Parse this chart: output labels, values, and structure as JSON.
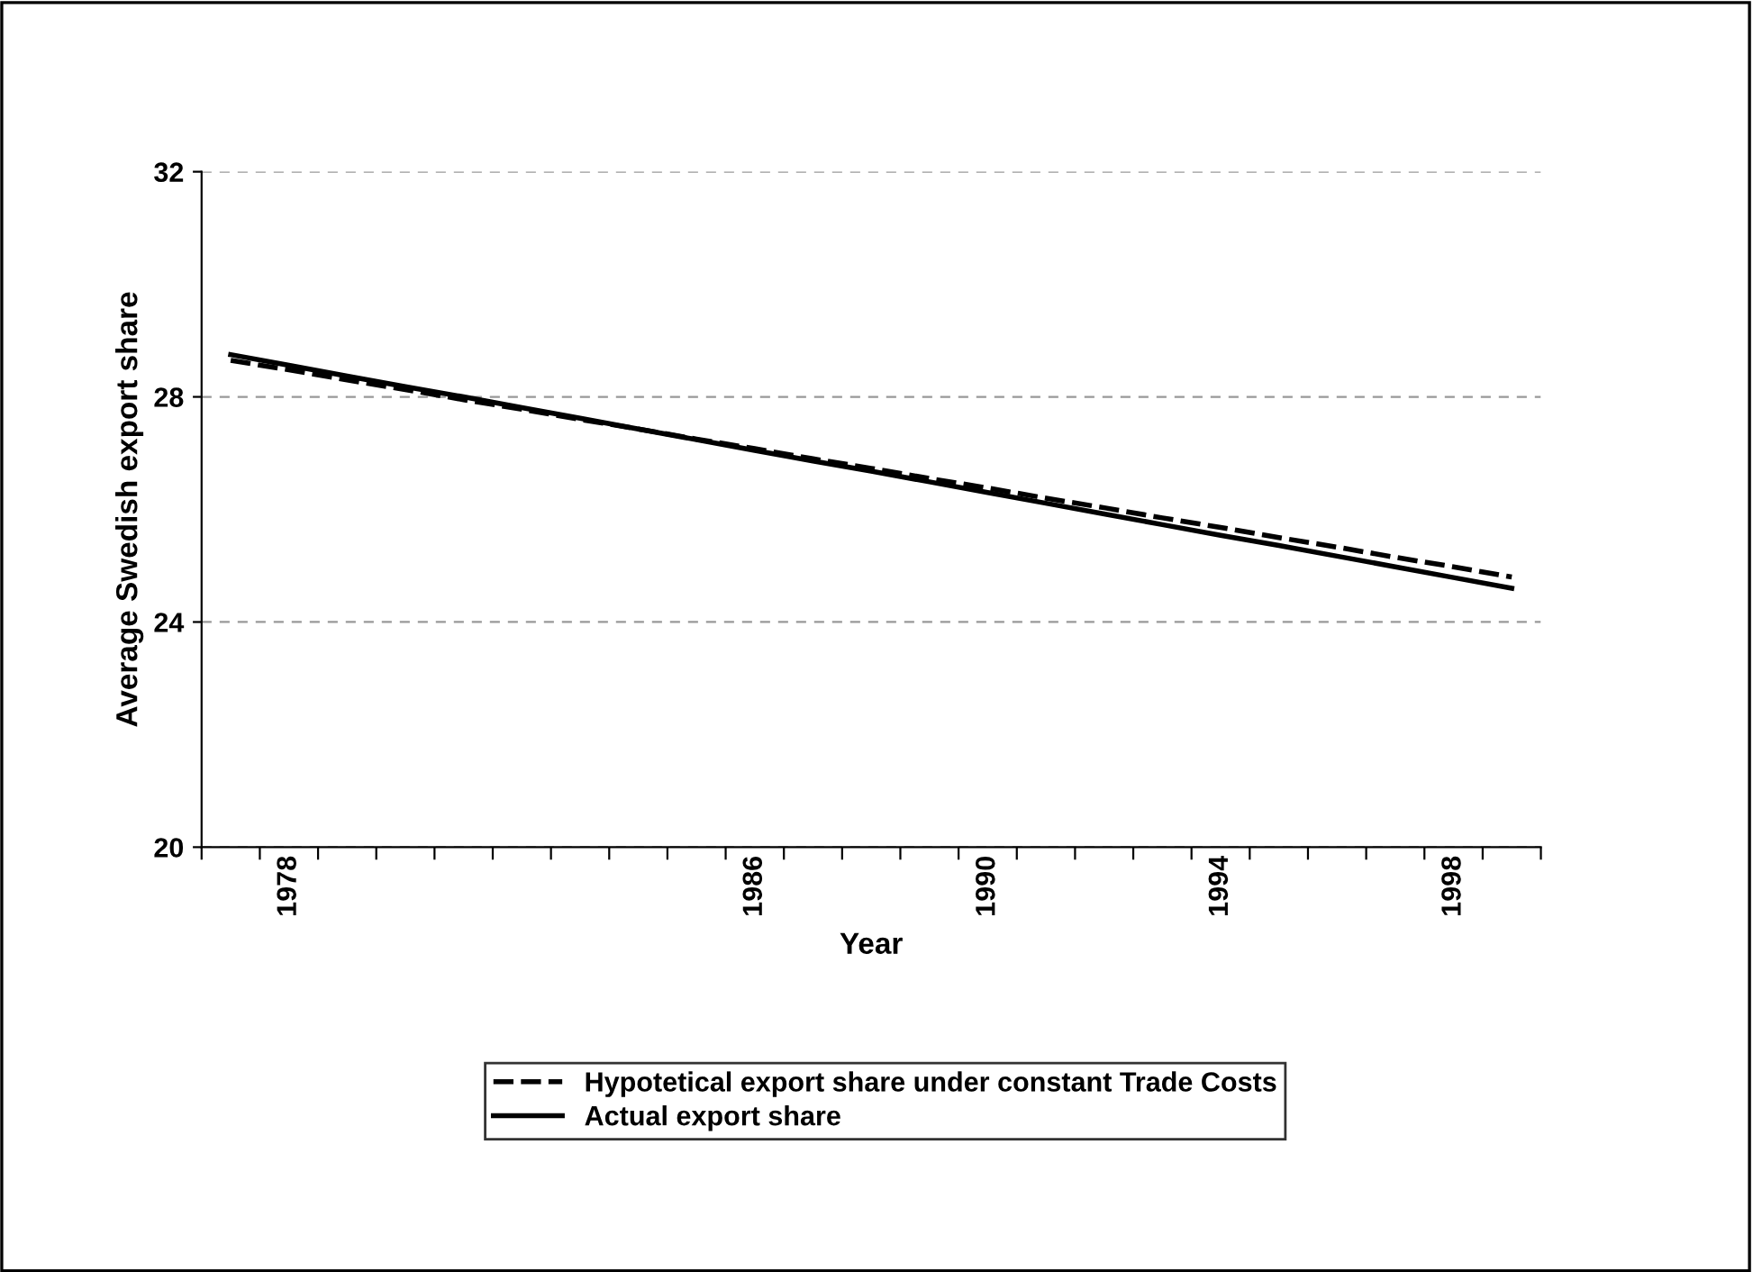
{
  "chart_data": {
    "type": "line",
    "xlabel": "Year",
    "ylabel": "Average Swedish export share",
    "categories": [
      null,
      "1978",
      null,
      null,
      null,
      null,
      null,
      null,
      null,
      "1986",
      null,
      null,
      null,
      "1990",
      null,
      null,
      null,
      "1994",
      null,
      null,
      null,
      "1998",
      null
    ],
    "series": [
      {
        "name": "Hypotetical export share under constant Trade Costs",
        "color": "#000000",
        "line_style": "dashed",
        "values": [
          28.65,
          28.48,
          28.3,
          28.13,
          27.95,
          27.78,
          27.6,
          27.43,
          27.25,
          27.08,
          26.9,
          26.73,
          26.55,
          26.38,
          26.2,
          26.03,
          25.85,
          25.68,
          25.5,
          25.33,
          25.15,
          24.98,
          24.8
        ]
      },
      {
        "name": "Actual export share",
        "color": "#000000",
        "line_style": "solid",
        "values": [
          28.75,
          28.56,
          28.37,
          28.18,
          28.0,
          27.81,
          27.62,
          27.43,
          27.24,
          27.05,
          26.86,
          26.68,
          26.49,
          26.3,
          26.11,
          25.92,
          25.73,
          25.54,
          25.36,
          25.17,
          24.98,
          24.79,
          24.6
        ]
      }
    ],
    "ylim": [
      20,
      32
    ],
    "yticks": [
      20,
      24,
      28,
      32
    ],
    "grid": "y",
    "legend": "bottom",
    "marker": "none"
  }
}
